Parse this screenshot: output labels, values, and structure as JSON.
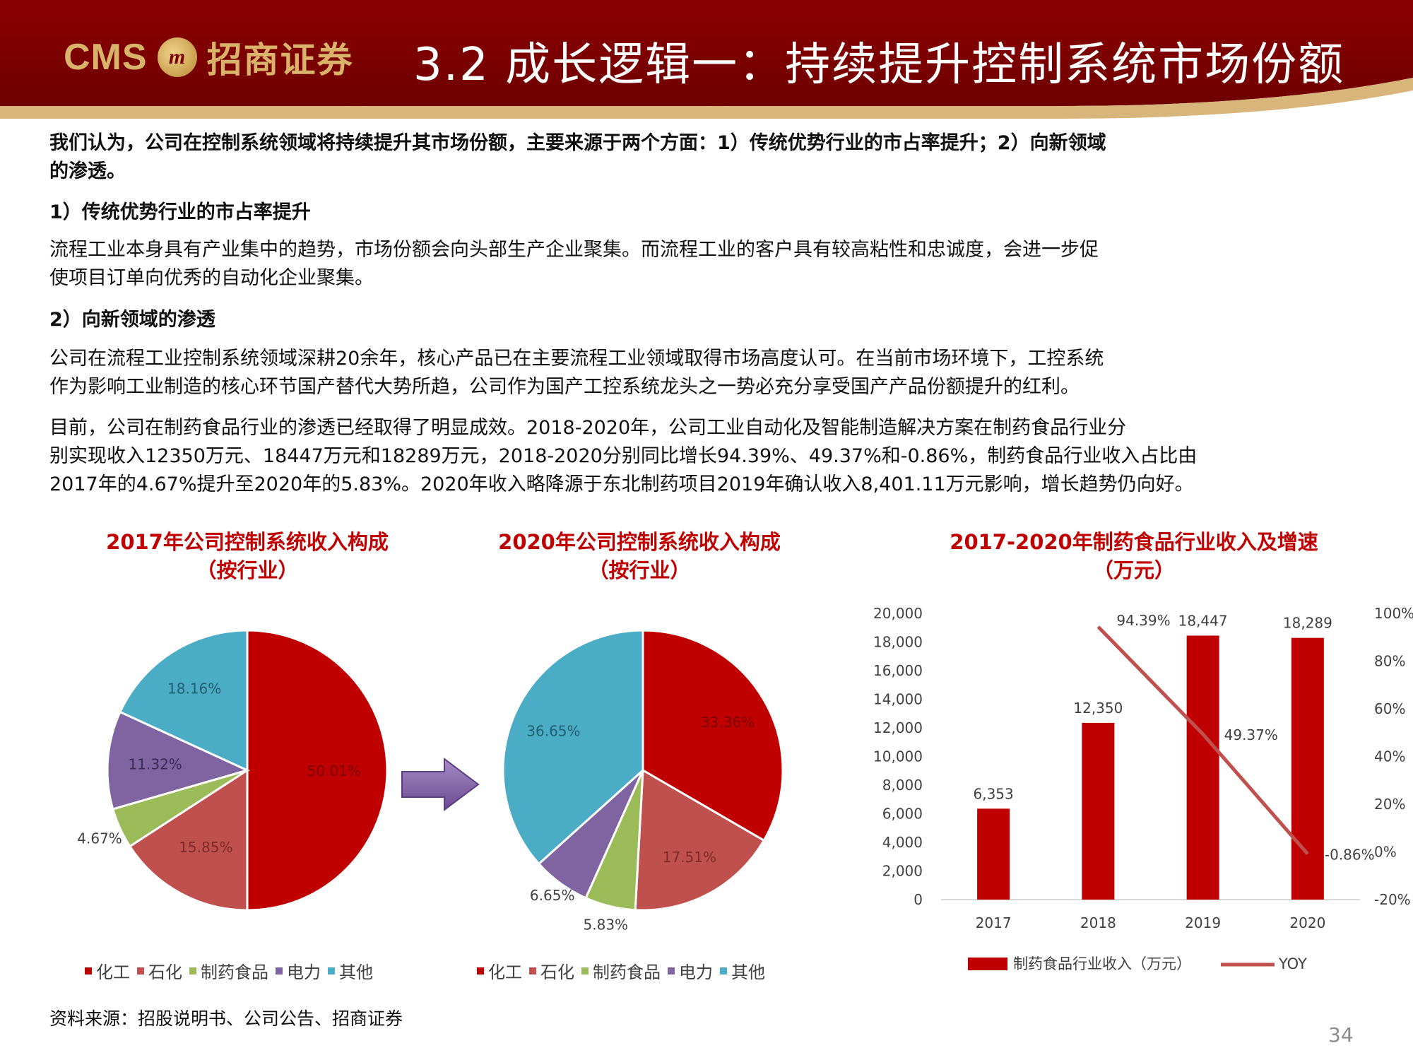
{
  "header": {
    "logo_text": "CMS",
    "logo_cn": "招商证券",
    "title": "3.2 成长逻辑一：持续提升控制系统市场份额"
  },
  "body": {
    "intro_line1": "我们认为，公司在控制系统领域将持续提升其市场份额，主要来源于两个方面：1）传统优势行业的市占率提升；2）向新领域",
    "intro_line2": "的渗透。",
    "section1_heading": "1）传统优势行业的市占率提升",
    "section1_line1": "流程工业本身具有产业集中的趋势，市场份额会向头部生产企业聚集。而流程工业的客户具有较高粘性和忠诚度，会进一步促",
    "section1_line2": "使项目订单向优秀的自动化企业聚集。",
    "section2_heading": "2）向新领域的渗透",
    "section2_p1_line1": "公司在流程工业控制系统领域深耕20余年，核心产品已在主要流程工业领域取得市场高度认可。在当前市场环境下，工控系统",
    "section2_p1_line2": "作为影响工业制造的核心环节国产替代大势所趋，公司作为国产工控系统龙头之一势必充分享受国产产品份额提升的红利。",
    "section2_p2_line1": "目前，公司在制药食品行业的渗透已经取得了明显成效。2018-2020年，公司工业自动化及智能制造解决方案在制药食品行业分",
    "section2_p2_line2": "别实现收入12350万元、18447万元和18289万元，2018-2020分别同比增长94.39%、49.37%和-0.86%，制药食品行业收入占比由",
    "section2_p2_line3": "2017年的4.67%提升至2020年的5.83%。2020年收入略降源于东北制药项目2019年确认收入8,401.11万元影响，增长趋势仍向好。"
  },
  "chart_data": [
    {
      "type": "pie",
      "title_line1": "2017年公司控制系统收入构成",
      "title_line2": "（按行业）",
      "categories": [
        "化工",
        "石化",
        "制药食品",
        "电力",
        "其他"
      ],
      "values": [
        50.01,
        15.85,
        4.67,
        11.32,
        18.16
      ],
      "labels": [
        "50.01%",
        "15.85%",
        "4.67%",
        "11.32%",
        "18.16%"
      ],
      "colors": [
        "#c00000",
        "#c0504d",
        "#9bbb59",
        "#8064a2",
        "#4bacc6"
      ],
      "legend_position": "bottom"
    },
    {
      "type": "pie",
      "title_line1": "2020年公司控制系统收入构成",
      "title_line2": "（按行业）",
      "categories": [
        "化工",
        "石化",
        "制药食品",
        "电力",
        "其他"
      ],
      "values": [
        33.36,
        17.51,
        5.83,
        6.65,
        36.65
      ],
      "labels": [
        "33.36%",
        "17.51%",
        "5.83%",
        "6.65%",
        "36.65%"
      ],
      "colors": [
        "#c00000",
        "#c0504d",
        "#9bbb59",
        "#8064a2",
        "#4bacc6"
      ],
      "legend_position": "bottom"
    },
    {
      "type": "bar",
      "title_line1": "2017-2020年制药食品行业收入及增速",
      "title_line2": "（万元）",
      "categories": [
        "2017",
        "2018",
        "2019",
        "2020"
      ],
      "series": [
        {
          "name": "制药食品行业收入（万元）",
          "kind": "bar",
          "axis": "left",
          "values": [
            6353,
            12350,
            18447,
            18289
          ],
          "labels": [
            "6,353",
            "12,350",
            "18,447",
            "18,289"
          ],
          "color": "#c00000"
        },
        {
          "name": "YOY",
          "kind": "line",
          "axis": "right",
          "values": [
            null,
            94.39,
            49.37,
            -0.86
          ],
          "labels": [
            "",
            "94.39%",
            "49.37%",
            "-0.86%"
          ],
          "color": "#c0504d"
        }
      ],
      "ylim": [
        0,
        20000
      ],
      "y_ticks": [
        "0",
        "2,000",
        "4,000",
        "6,000",
        "8,000",
        "10,000",
        "12,000",
        "14,000",
        "16,000",
        "18,000",
        "20,000"
      ],
      "y2lim": [
        -20,
        100
      ],
      "y2_ticks": [
        "-20%",
        "0%",
        "20%",
        "40%",
        "60%",
        "80%",
        "100%"
      ],
      "legend_position": "bottom",
      "grid": false
    }
  ],
  "arrow_icon": "right-arrow-icon",
  "source": "资料来源：招股说明书、公司公告、招商证券",
  "page_number": "34"
}
